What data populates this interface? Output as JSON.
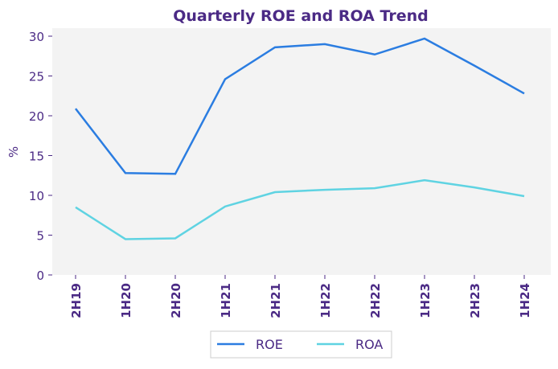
{
  "chart_data": {
    "type": "line",
    "title": "Quarterly ROE and ROA Trend",
    "xlabel": "",
    "ylabel": "%",
    "categories": [
      "2H19",
      "1H20",
      "2H20",
      "1H21",
      "2H21",
      "1H22",
      "2H22",
      "1H23",
      "2H23",
      "1H24"
    ],
    "series": [
      {
        "name": "ROE",
        "color": "#2b7de1",
        "values": [
          20.9,
          12.8,
          12.7,
          24.6,
          28.6,
          29.0,
          27.7,
          29.7,
          26.3,
          22.8
        ]
      },
      {
        "name": "ROA",
        "color": "#5fd3e2",
        "values": [
          8.5,
          4.5,
          4.6,
          8.6,
          10.4,
          10.7,
          10.9,
          11.9,
          11.0,
          9.9
        ]
      }
    ],
    "ylim": [
      0,
      31
    ],
    "yticks": [
      0,
      5,
      10,
      15,
      20,
      25,
      30
    ],
    "grid": false,
    "legend": "bottom-center",
    "background": "#f3f3f3"
  }
}
